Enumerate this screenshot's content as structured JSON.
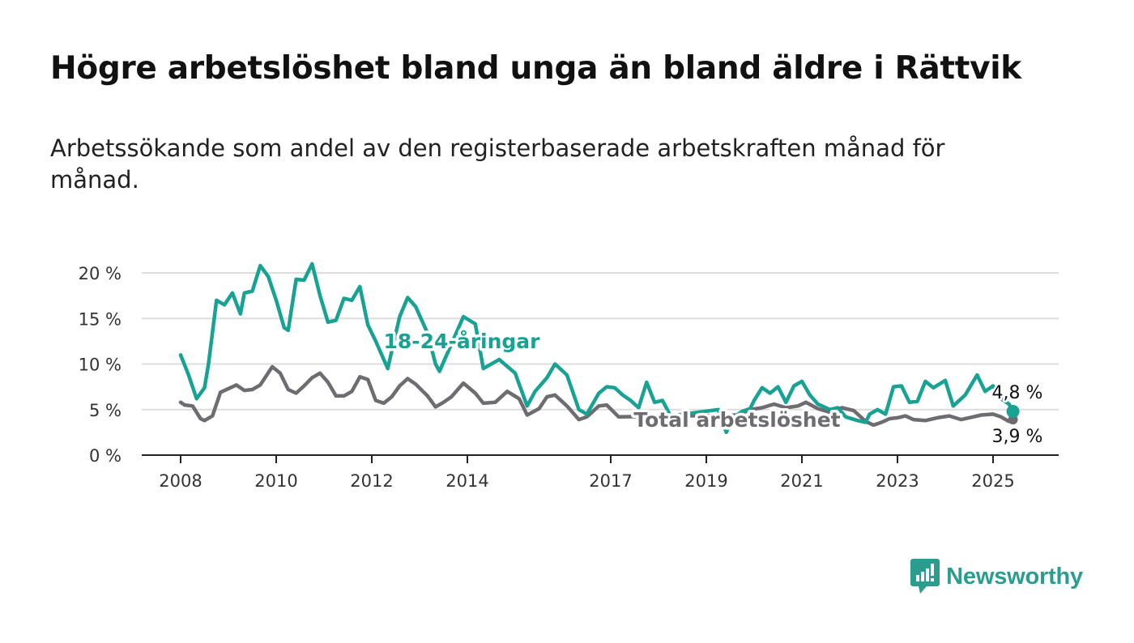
{
  "chart_data": {
    "type": "line",
    "title": "Högre arbetslöshet bland unga än bland äldre i Rättvik",
    "subtitle": "Arbetssökande som andel av den registerbaserade arbetskraften månad för månad.",
    "x_ticks": [
      "2008",
      "2010",
      "2012",
      "2014",
      "2017",
      "2019",
      "2021",
      "2023",
      "2025"
    ],
    "y_ticks": [
      "0 %",
      "5 %",
      "10 %",
      "15 %",
      "20 %"
    ],
    "ylim": [
      0,
      20
    ],
    "xlim": [
      "2007-10",
      "2025-12"
    ],
    "grid": "horizontal",
    "colors": {
      "youth": "#17a293",
      "total": "#6e6c70",
      "grid": "#dddddd",
      "axis": "#222222"
    },
    "series": [
      {
        "name": "18-24-åringar",
        "end_label": "4,8 %",
        "points": [
          [
            "2008-01",
            11.0
          ],
          [
            "2008-03",
            8.8
          ],
          [
            "2008-05",
            6.2
          ],
          [
            "2008-07",
            7.4
          ],
          [
            "2008-08",
            10.0
          ],
          [
            "2008-10",
            17.0
          ],
          [
            "2008-12",
            16.5
          ],
          [
            "2009-02",
            17.8
          ],
          [
            "2009-04",
            15.5
          ],
          [
            "2009-05",
            17.8
          ],
          [
            "2009-07",
            18.0
          ],
          [
            "2009-09",
            20.8
          ],
          [
            "2009-11",
            19.6
          ],
          [
            "2010-01",
            17.0
          ],
          [
            "2010-03",
            14.0
          ],
          [
            "2010-04",
            13.7
          ],
          [
            "2010-06",
            19.3
          ],
          [
            "2010-08",
            19.2
          ],
          [
            "2010-10",
            21.0
          ],
          [
            "2010-12",
            17.5
          ],
          [
            "2011-02",
            14.6
          ],
          [
            "2011-04",
            14.8
          ],
          [
            "2011-06",
            17.2
          ],
          [
            "2011-08",
            17.0
          ],
          [
            "2011-10",
            18.5
          ],
          [
            "2011-12",
            14.3
          ],
          [
            "2012-02",
            12.5
          ],
          [
            "2012-05",
            9.5
          ],
          [
            "2012-08",
            15.2
          ],
          [
            "2012-10",
            17.3
          ],
          [
            "2012-12",
            16.3
          ],
          [
            "2013-03",
            13.4
          ],
          [
            "2013-05",
            10.0
          ],
          [
            "2013-06",
            9.2
          ],
          [
            "2013-09",
            12.2
          ],
          [
            "2013-12",
            15.2
          ],
          [
            "2014-03",
            14.4
          ],
          [
            "2014-05",
            9.5
          ],
          [
            "2014-09",
            10.5
          ],
          [
            "2015-01",
            9.0
          ],
          [
            "2015-04",
            5.4
          ],
          [
            "2015-06",
            7.0
          ],
          [
            "2015-09",
            8.5
          ],
          [
            "2015-11",
            10.0
          ],
          [
            "2016-02",
            8.8
          ],
          [
            "2016-05",
            5.0
          ],
          [
            "2016-07",
            4.5
          ],
          [
            "2016-10",
            6.8
          ],
          [
            "2016-12",
            7.5
          ],
          [
            "2017-02",
            7.4
          ],
          [
            "2017-04",
            6.6
          ],
          [
            "2017-06",
            6.0
          ],
          [
            "2017-08",
            5.2
          ],
          [
            "2017-10",
            8.0
          ],
          [
            "2017-12",
            5.8
          ],
          [
            "2018-02",
            6.0
          ],
          [
            "2018-04",
            4.3
          ],
          [
            "2019-04",
            5.0
          ],
          [
            "2019-06",
            2.5
          ],
          [
            "2019-08",
            4.2
          ],
          [
            "2019-10",
            4.8
          ],
          [
            "2019-12",
            5.1
          ],
          [
            "2020-01",
            6.0
          ],
          [
            "2020-03",
            7.4
          ],
          [
            "2020-05",
            6.8
          ],
          [
            "2020-07",
            7.5
          ],
          [
            "2020-09",
            5.8
          ],
          [
            "2020-11",
            7.6
          ],
          [
            "2021-01",
            8.1
          ],
          [
            "2021-03",
            6.6
          ],
          [
            "2021-05",
            5.6
          ],
          [
            "2021-08",
            5.0
          ],
          [
            "2021-10",
            5.2
          ],
          [
            "2021-12",
            4.2
          ],
          [
            "2022-03",
            3.8
          ],
          [
            "2022-05",
            3.6
          ],
          [
            "2022-06",
            4.5
          ],
          [
            "2022-08",
            5.0
          ],
          [
            "2022-10",
            4.5
          ],
          [
            "2022-12",
            7.5
          ],
          [
            "2023-02",
            7.6
          ],
          [
            "2023-04",
            5.8
          ],
          [
            "2023-06",
            5.9
          ],
          [
            "2023-08",
            8.1
          ],
          [
            "2023-10",
            7.4
          ],
          [
            "2024-01",
            8.2
          ],
          [
            "2024-03",
            5.4
          ],
          [
            "2024-06",
            6.6
          ],
          [
            "2024-09",
            8.8
          ],
          [
            "2024-11",
            7.0
          ],
          [
            "2025-01",
            7.6
          ],
          [
            "2025-03",
            6.2
          ],
          [
            "2025-05",
            5.6
          ],
          [
            "2025-06",
            4.8
          ]
        ]
      },
      {
        "name": "Total arbetslöshet",
        "end_label": "3,9 %",
        "points": [
          [
            "2008-01",
            5.8
          ],
          [
            "2008-02",
            5.5
          ],
          [
            "2008-04",
            5.4
          ],
          [
            "2008-06",
            4.0
          ],
          [
            "2008-07",
            3.8
          ],
          [
            "2008-09",
            4.3
          ],
          [
            "2008-11",
            6.9
          ],
          [
            "2009-01",
            7.3
          ],
          [
            "2009-03",
            7.7
          ],
          [
            "2009-05",
            7.1
          ],
          [
            "2009-07",
            7.2
          ],
          [
            "2009-09",
            7.7
          ],
          [
            "2009-12",
            9.7
          ],
          [
            "2010-02",
            9.0
          ],
          [
            "2010-04",
            7.2
          ],
          [
            "2010-06",
            6.8
          ],
          [
            "2010-08",
            7.6
          ],
          [
            "2010-10",
            8.5
          ],
          [
            "2010-12",
            9.0
          ],
          [
            "2011-02",
            8.0
          ],
          [
            "2011-04",
            6.5
          ],
          [
            "2011-06",
            6.5
          ],
          [
            "2011-08",
            7.0
          ],
          [
            "2011-10",
            8.6
          ],
          [
            "2011-12",
            8.3
          ],
          [
            "2012-02",
            6.0
          ],
          [
            "2012-04",
            5.7
          ],
          [
            "2012-06",
            6.4
          ],
          [
            "2012-08",
            7.6
          ],
          [
            "2012-10",
            8.4
          ],
          [
            "2012-12",
            7.8
          ],
          [
            "2013-03",
            6.5
          ],
          [
            "2013-05",
            5.3
          ],
          [
            "2013-07",
            5.8
          ],
          [
            "2013-09",
            6.4
          ],
          [
            "2013-12",
            7.9
          ],
          [
            "2014-03",
            6.8
          ],
          [
            "2014-05",
            5.7
          ],
          [
            "2014-08",
            5.8
          ],
          [
            "2014-11",
            7.0
          ],
          [
            "2015-02",
            6.2
          ],
          [
            "2015-04",
            4.4
          ],
          [
            "2015-07",
            5.1
          ],
          [
            "2015-09",
            6.4
          ],
          [
            "2015-11",
            6.6
          ],
          [
            "2016-02",
            5.4
          ],
          [
            "2016-05",
            3.9
          ],
          [
            "2016-07",
            4.2
          ],
          [
            "2016-10",
            5.4
          ],
          [
            "2016-12",
            5.5
          ],
          [
            "2017-03",
            4.2
          ],
          [
            "2019-09",
            4.4
          ],
          [
            "2019-12",
            5.0
          ],
          [
            "2020-03",
            5.2
          ],
          [
            "2020-06",
            5.6
          ],
          [
            "2020-09",
            5.2
          ],
          [
            "2020-12",
            5.4
          ],
          [
            "2021-02",
            5.8
          ],
          [
            "2021-05",
            5.1
          ],
          [
            "2021-08",
            4.7
          ],
          [
            "2021-11",
            5.2
          ],
          [
            "2022-02",
            4.9
          ],
          [
            "2022-05",
            3.7
          ],
          [
            "2022-07",
            3.3
          ],
          [
            "2022-09",
            3.6
          ],
          [
            "2022-11",
            4.0
          ],
          [
            "2023-01",
            4.1
          ],
          [
            "2023-03",
            4.3
          ],
          [
            "2023-05",
            3.9
          ],
          [
            "2023-08",
            3.8
          ],
          [
            "2023-11",
            4.1
          ],
          [
            "2024-02",
            4.3
          ],
          [
            "2024-05",
            3.9
          ],
          [
            "2024-08",
            4.2
          ],
          [
            "2024-10",
            4.4
          ],
          [
            "2025-01",
            4.5
          ],
          [
            "2025-03",
            4.2
          ],
          [
            "2025-05",
            3.7
          ],
          [
            "2025-06",
            3.9
          ]
        ]
      }
    ]
  },
  "brand": {
    "name": "Newsworthy",
    "icon": "newsworthy-logo-icon",
    "color": "#2a9d8f"
  }
}
